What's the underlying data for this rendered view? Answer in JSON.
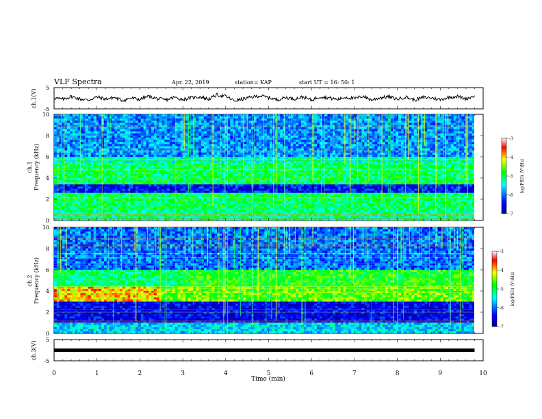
{
  "header": {
    "title": "VLF Spectra",
    "date": "Apr. 22, 2019",
    "station": "station= KAP",
    "start": "start  UT =   16: 50: 1"
  },
  "chart_data": [
    {
      "type": "line",
      "panel": "ch1-waveform",
      "ylabel": "ch.1(V)",
      "ylim": [
        -5,
        5
      ],
      "yticks": [
        "5",
        "-5"
      ],
      "x_range_min": [
        0,
        9.8
      ],
      "series": [
        {
          "x": [
            0.0,
            0.2,
            0.4,
            0.6,
            0.8,
            1.0,
            1.2,
            1.4,
            1.6,
            1.8,
            2.0,
            2.2,
            2.4,
            2.6,
            2.8,
            3.0,
            3.2,
            3.4,
            3.6,
            3.8,
            4.0,
            4.2,
            4.4,
            4.6,
            4.8,
            5.0,
            5.2,
            5.4,
            5.6,
            5.8,
            6.0,
            6.2,
            6.4,
            6.6,
            6.8,
            7.0,
            7.2,
            7.4,
            7.6,
            7.8,
            8.0,
            8.2,
            8.4,
            8.6,
            8.8,
            9.0,
            9.2,
            9.4,
            9.6,
            9.8
          ],
          "values": [
            0.2,
            -0.5,
            0.8,
            -0.3,
            -0.9,
            0.6,
            -0.4,
            0.3,
            -1.0,
            0.1,
            -0.6,
            0.9,
            -0.2,
            -0.8,
            0.4,
            -0.5,
            0.2,
            0.7,
            -0.4,
            1.6,
            0.9,
            -1.2,
            -0.4,
            0.5,
            1.2,
            0.3,
            -0.7,
            0.4,
            -0.3,
            0.6,
            -0.9,
            0.8,
            0.2,
            -0.6,
            0.5,
            -0.2,
            1.0,
            -0.8,
            0.3,
            0.7,
            -0.4,
            0.6,
            -0.9,
            0.4,
            0.2,
            -0.7,
            0.5,
            0.9,
            -0.3,
            1.2
          ]
        }
      ]
    },
    {
      "type": "heatmap",
      "panel": "ch1-spectrogram",
      "ylabel": "ch.1\nFrequency (kHz)",
      "ylim": [
        0,
        10
      ],
      "yticks": [
        "0",
        "2",
        "4",
        "6",
        "8",
        "10"
      ],
      "colorbar": {
        "label": "log(PSD) (V²/Hz)",
        "range": [
          -7,
          -3
        ],
        "ticks": [
          "-3",
          "-4",
          "-5",
          "-6",
          "-7"
        ]
      },
      "features": [
        {
          "freq_range_kHz": [
            0.0,
            1.0
          ],
          "level": -5.2
        },
        {
          "freq_range_kHz": [
            1.0,
            2.6
          ],
          "level": -5.0
        },
        {
          "freq_range_kHz": [
            2.6,
            3.5
          ],
          "level": -6.4
        },
        {
          "freq_range_kHz": [
            3.5,
            5.4
          ],
          "level": -5.0
        },
        {
          "freq_range_kHz": [
            5.4,
            6.0
          ],
          "level": -5.3
        },
        {
          "freq_range_kHz": [
            6.0,
            10.0
          ],
          "level": -5.9
        }
      ]
    },
    {
      "type": "heatmap",
      "panel": "ch2-spectrogram",
      "ylabel": "ch.2\nFrequency (kHz)",
      "ylim": [
        0,
        10
      ],
      "yticks": [
        "0",
        "2",
        "4",
        "6",
        "8",
        "10"
      ],
      "colorbar": {
        "label": "log(PSD) (V²/Hz)",
        "range": [
          -7,
          -3
        ],
        "ticks": [
          "-3",
          "-4",
          "-5",
          "-6",
          "-7"
        ]
      },
      "features": [
        {
          "freq_range_kHz": [
            0.0,
            1.0
          ],
          "level": -5.6
        },
        {
          "freq_range_kHz": [
            1.0,
            3.0
          ],
          "level": -6.5
        },
        {
          "freq_range_kHz": [
            3.0,
            4.4
          ],
          "level": -4.6
        },
        {
          "freq_range_kHz": [
            4.4,
            6.0
          ],
          "level": -5.1
        },
        {
          "freq_range_kHz": [
            6.0,
            10.0
          ],
          "level": -6.0
        }
      ]
    },
    {
      "type": "line",
      "panel": "ch3-waveform",
      "ylabel": "ch.3(V)",
      "ylim": [
        -5,
        5
      ],
      "yticks": [
        "5",
        "-5"
      ],
      "xlabel": "Time (min)",
      "xlim": [
        0,
        10
      ],
      "xticks": [
        "0",
        "1",
        "2",
        "3",
        "4",
        "5",
        "6",
        "7",
        "8",
        "9",
        "10"
      ],
      "series": [
        {
          "x": [
            0,
            9.8
          ],
          "values": [
            0,
            0
          ]
        }
      ]
    }
  ]
}
